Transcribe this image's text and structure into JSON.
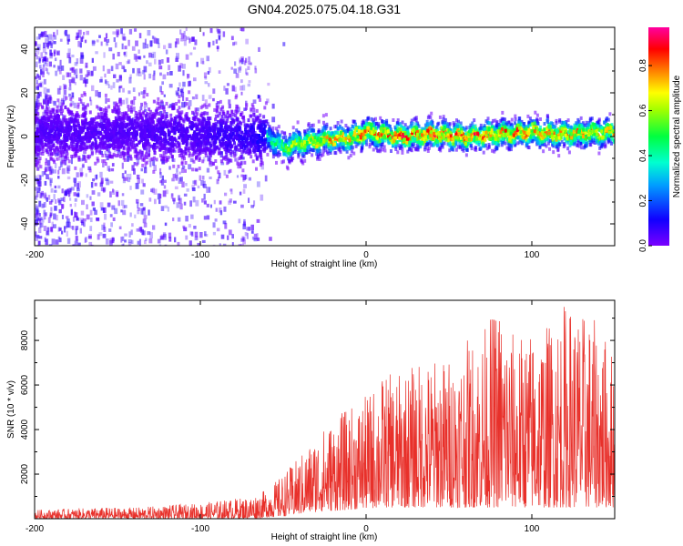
{
  "figure": {
    "title": "GN04.2025.075.04.18.G31"
  },
  "chart_data": [
    {
      "type": "heatmap",
      "xlabel": "Height of straight line (km)",
      "ylabel": "Frequency (Hz)",
      "xlim": [
        -200,
        150
      ],
      "ylim": [
        -50,
        50
      ],
      "xticks": [
        -200,
        -100,
        0,
        100
      ],
      "yticks": [
        -40,
        -20,
        0,
        20,
        40
      ],
      "colorbar": {
        "label": "Normalized spectral amplitude",
        "range": [
          0,
          0.97
        ],
        "ticks": [
          "0.0",
          "0.2",
          "0.4",
          "0.6",
          "0.8"
        ],
        "colormap": "rainbow (purple to magenta)"
      },
      "ridge": {
        "x": [
          -200,
          -150,
          -100,
          -70,
          -60,
          -50,
          -40,
          -30,
          -20,
          -10,
          0,
          10,
          20,
          40,
          60,
          80,
          100,
          120,
          150
        ],
        "frequency": [
          2,
          2,
          1,
          0,
          0,
          -5,
          -3,
          -2,
          -1,
          -1,
          2,
          1,
          0,
          1,
          0,
          1,
          2,
          1,
          2
        ],
        "amplitude": [
          0.15,
          0.15,
          0.2,
          0.3,
          0.4,
          0.55,
          0.7,
          0.75,
          0.8,
          0.8,
          0.85,
          0.85,
          0.9,
          0.9,
          0.9,
          0.85,
          0.85,
          0.8,
          0.75
        ]
      },
      "grid": false
    },
    {
      "type": "line",
      "xlabel": "Height of straight line (km)",
      "ylabel": "SNR (10 * v/v)",
      "xlim": [
        -200,
        150
      ],
      "ylim": [
        0,
        9800
      ],
      "xticks": [
        -200,
        -100,
        0,
        100
      ],
      "yticks": [
        2000,
        4000,
        6000,
        8000
      ],
      "color": "#e8302a",
      "series": [
        {
          "x": [
            -200,
            -180,
            -160,
            -140,
            -120,
            -100,
            -90,
            -80,
            -70,
            -60,
            -50,
            -40,
            -30,
            -20,
            -10,
            0,
            10,
            20,
            30,
            40,
            50,
            60,
            70,
            80,
            90,
            100,
            110,
            120,
            130,
            140,
            150
          ],
          "y_min": [
            0,
            0,
            0,
            0,
            0,
            0,
            0,
            0,
            0,
            50,
            100,
            200,
            300,
            350,
            400,
            450,
            500,
            500,
            500,
            500,
            500,
            500,
            500,
            500,
            500,
            500,
            500,
            500,
            500,
            500,
            500
          ],
          "y_max": [
            400,
            450,
            500,
            500,
            600,
            700,
            800,
            900,
            1000,
            1300,
            2000,
            2800,
            3800,
            4500,
            5000,
            5500,
            6500,
            6500,
            7000,
            7200,
            7300,
            8000,
            8500,
            9800,
            8200,
            8500,
            8800,
            9800,
            9300,
            8800,
            7500
          ]
        }
      ],
      "grid": false
    }
  ]
}
